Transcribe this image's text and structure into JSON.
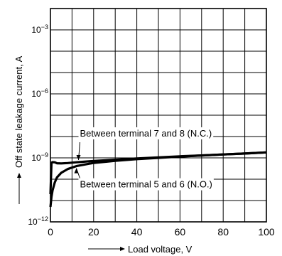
{
  "chart_data": {
    "type": "line",
    "xlabel": "Load voltage, V",
    "ylabel": "Off state leakage current, A",
    "xlim": [
      0,
      100
    ],
    "ylim": [
      1e-12,
      0.01
    ],
    "y_scale": "log",
    "grid": true,
    "x_ticks": [
      {
        "value": 0,
        "label": "0"
      },
      {
        "value": 20,
        "label": "20"
      },
      {
        "value": 40,
        "label": "40"
      },
      {
        "value": 60,
        "label": "60"
      },
      {
        "value": 80,
        "label": "80"
      },
      {
        "value": 100,
        "label": "100"
      }
    ],
    "y_ticks": [
      {
        "value": 1e-12,
        "base": "10",
        "exp": "−12"
      },
      {
        "value": 1e-09,
        "base": "10",
        "exp": "−9"
      },
      {
        "value": 1e-06,
        "base": "10",
        "exp": "−6"
      },
      {
        "value": 0.001,
        "base": "10",
        "exp": "−3"
      }
    ],
    "series": [
      {
        "name": "Between terminal 7 and 8 (N.C.)",
        "x": [
          0,
          0.5,
          1,
          2,
          3,
          5,
          8,
          12,
          20,
          30,
          40,
          50,
          60,
          70,
          80,
          90,
          100
        ],
        "y": [
          2e-11,
          6e-10,
          6.3e-10,
          6.2e-10,
          5.6e-10,
          5.5e-10,
          5.7e-10,
          6.2e-10,
          7.2e-10,
          8.2e-10,
          9.3e-10,
          1.05e-09,
          1.18e-09,
          1.3e-09,
          1.45e-09,
          1.6e-09,
          1.8e-09
        ]
      },
      {
        "name": "Between terminal 5 and 6 (N.O.)",
        "x": [
          0,
          0.5,
          1,
          2,
          3,
          5,
          8,
          12,
          20,
          30,
          40,
          50,
          60,
          70,
          80,
          90,
          100
        ],
        "y": [
          5e-12,
          1.5e-11,
          3e-11,
          7e-11,
          1.2e-10,
          2e-10,
          3e-10,
          4.1e-10,
          5.8e-10,
          7.3e-10,
          8.7e-10,
          1e-09,
          1.15e-09,
          1.3e-09,
          1.45e-09,
          1.6e-09,
          1.8e-09
        ]
      }
    ],
    "annotations": [
      {
        "text": "Between terminal 7 and 8 (N.C.)",
        "series": 0,
        "at_x": 13
      },
      {
        "text": "Between terminal 5 and 6 (N.O.)",
        "series": 1,
        "at_x": 12
      }
    ]
  }
}
